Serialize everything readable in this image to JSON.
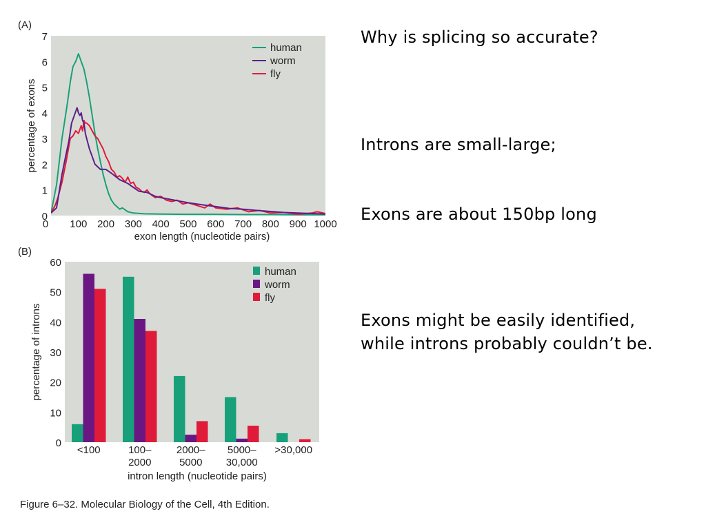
{
  "chart_data": [
    {
      "type": "line",
      "panel_label": "(A)",
      "xlabel": "exon length (nucleotide pairs)",
      "ylabel": "percentage of exons",
      "xlim": [
        0,
        1000
      ],
      "ylim": [
        0,
        7
      ],
      "xticks": [
        0,
        100,
        200,
        300,
        400,
        500,
        600,
        700,
        800,
        900,
        1000
      ],
      "yticks": [
        0,
        1,
        2,
        3,
        4,
        5,
        6,
        7
      ],
      "grid": false,
      "legend_position": "top-right",
      "background": "#d8dbd5",
      "series": [
        {
          "name": "human",
          "color": "#18a07a",
          "x": [
            0,
            20,
            40,
            60,
            70,
            80,
            90,
            100,
            110,
            120,
            130,
            140,
            150,
            160,
            170,
            180,
            190,
            200,
            210,
            220,
            230,
            240,
            250,
            260,
            280,
            300,
            340,
            400,
            500,
            600,
            700,
            800,
            900,
            1000
          ],
          "y": [
            0.1,
            1.2,
            3.0,
            4.4,
            5.2,
            5.8,
            6.0,
            6.3,
            6.0,
            5.7,
            5.2,
            4.6,
            3.9,
            3.2,
            2.6,
            2.1,
            1.6,
            1.2,
            0.85,
            0.6,
            0.45,
            0.35,
            0.25,
            0.3,
            0.15,
            0.1,
            0.07,
            0.06,
            0.05,
            0.05,
            0.04,
            0.04,
            0.03,
            0.03
          ]
        },
        {
          "name": "worm",
          "color": "#5b1f8a",
          "x": [
            0,
            20,
            40,
            55,
            65,
            75,
            85,
            95,
            100,
            105,
            110,
            115,
            120,
            125,
            130,
            135,
            140,
            150,
            160,
            170,
            180,
            200,
            220,
            250,
            280,
            300,
            320,
            350,
            380,
            400,
            450,
            500,
            550,
            600,
            650,
            700,
            750,
            800,
            850,
            900,
            950,
            1000
          ],
          "y": [
            0.1,
            0.3,
            1.6,
            2.4,
            2.9,
            3.6,
            3.9,
            4.2,
            4.0,
            3.9,
            4.0,
            3.7,
            3.6,
            3.2,
            3.0,
            2.8,
            2.6,
            2.3,
            2.0,
            1.9,
            1.8,
            1.8,
            1.65,
            1.4,
            1.25,
            1.1,
            0.95,
            0.9,
            0.75,
            0.7,
            0.6,
            0.5,
            0.42,
            0.35,
            0.28,
            0.25,
            0.2,
            0.16,
            0.12,
            0.1,
            0.08,
            0.06
          ]
        },
        {
          "name": "fly",
          "color": "#e01b3a",
          "x": [
            0,
            15,
            25,
            40,
            55,
            70,
            80,
            90,
            100,
            110,
            115,
            120,
            125,
            130,
            140,
            150,
            160,
            170,
            180,
            190,
            200,
            210,
            220,
            230,
            240,
            250,
            260,
            270,
            280,
            290,
            300,
            310,
            320,
            330,
            340,
            350,
            360,
            380,
            400,
            420,
            440,
            460,
            480,
            500,
            530,
            560,
            580,
            600,
            640,
            680,
            720,
            760,
            800,
            850,
            900,
            950,
            970,
            1000
          ],
          "y": [
            0.1,
            0.4,
            0.7,
            1.3,
            2.1,
            3.0,
            3.1,
            3.3,
            3.2,
            3.5,
            3.3,
            3.7,
            3.6,
            3.6,
            3.5,
            3.3,
            3.1,
            3.0,
            2.8,
            2.6,
            2.3,
            2.1,
            1.8,
            1.7,
            1.5,
            1.55,
            1.45,
            1.3,
            1.5,
            1.25,
            1.3,
            1.1,
            1.05,
            0.95,
            0.9,
            1.0,
            0.85,
            0.7,
            0.75,
            0.6,
            0.55,
            0.6,
            0.45,
            0.5,
            0.4,
            0.3,
            0.45,
            0.3,
            0.25,
            0.3,
            0.15,
            0.2,
            0.1,
            0.12,
            0.05,
            0.1,
            0.15,
            0.08
          ]
        }
      ]
    },
    {
      "type": "bar",
      "panel_label": "(B)",
      "xlabel": "intron length (nucleotide pairs)",
      "ylabel": "percentage of introns",
      "ylim": [
        0,
        60
      ],
      "yticks": [
        0,
        10,
        20,
        30,
        40,
        50,
        60
      ],
      "grid": false,
      "legend_position": "top-right",
      "background": "#d8dbd5",
      "categories": [
        [
          "<100"
        ],
        [
          "100–",
          "2000"
        ],
        [
          "2000–",
          "5000"
        ],
        [
          "5000–",
          "30,000"
        ],
        [
          ">30,000"
        ]
      ],
      "series": [
        {
          "name": "human",
          "color": "#18a07a",
          "values": [
            6,
            55,
            22,
            15,
            3
          ]
        },
        {
          "name": "worm",
          "color": "#6a1784",
          "values": [
            56,
            41,
            2.5,
            1.2,
            0
          ]
        },
        {
          "name": "fly",
          "color": "#e01b3a",
          "values": [
            51,
            37,
            7,
            5.5,
            1
          ]
        }
      ]
    }
  ],
  "notes": [
    "Why is splicing so accurate?",
    "Introns are small-large;",
    "Exons are about 150bp long",
    "Exons might be easily identified,",
    "while introns probably couldn’t be."
  ],
  "caption": "Figure 6–32. Molecular Biology of the Cell, 4th Edition."
}
